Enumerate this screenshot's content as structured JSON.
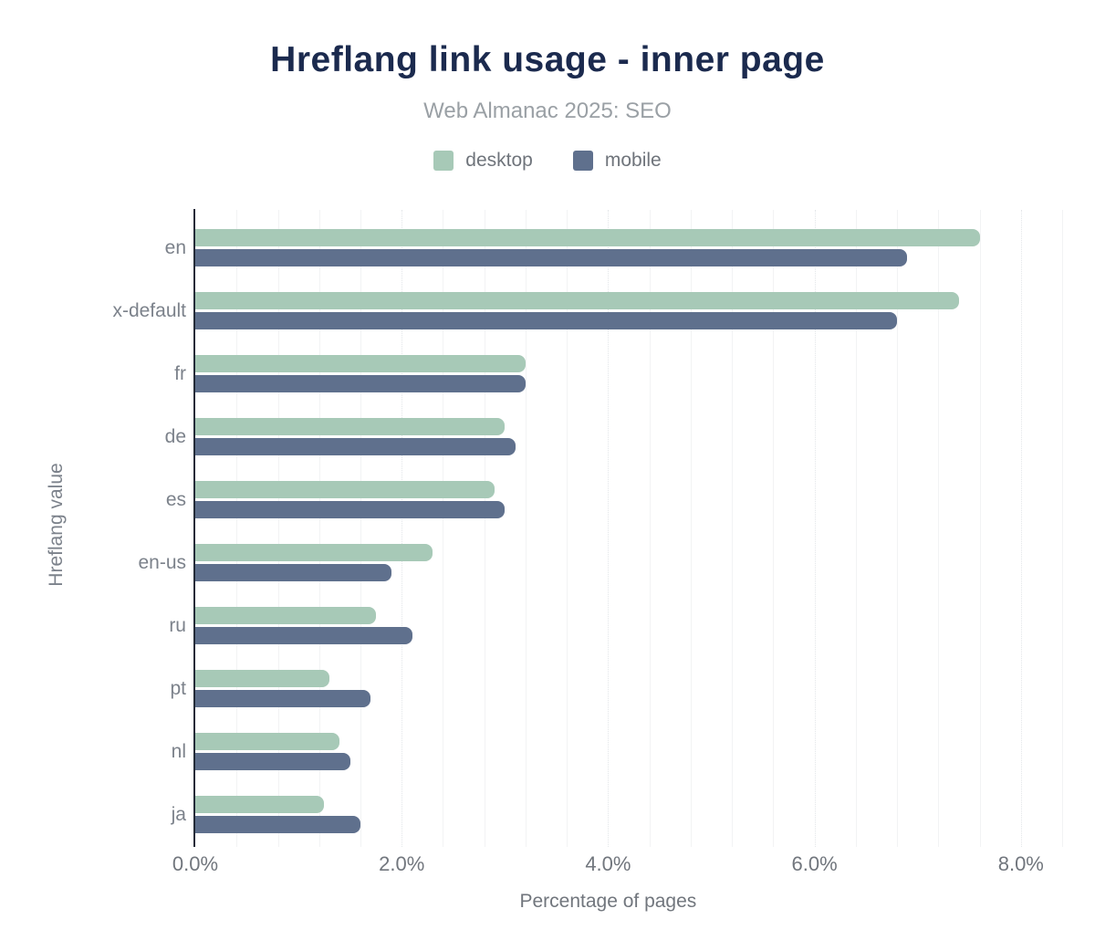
{
  "header": {
    "title": "Hreflang link usage - inner page",
    "subtitle": "Web Almanac 2025: SEO"
  },
  "legend": {
    "items": [
      {
        "label": "desktop",
        "color": "#a7c9b7"
      },
      {
        "label": "mobile",
        "color": "#5f708d"
      }
    ]
  },
  "colors": {
    "title": "#1b2a4e",
    "subtitle": "#9aa0a5",
    "axis_line": "#242b38",
    "desktop_bar": "#a7c9b7",
    "mobile_bar": "#5f708d"
  },
  "chart_data": {
    "type": "bar",
    "orientation": "horizontal",
    "title": "Hreflang link usage - inner page",
    "subtitle": "Web Almanac 2025: SEO",
    "xlabel": "Percentage of pages",
    "ylabel": "Hreflang value",
    "categories": [
      "en",
      "x-default",
      "fr",
      "de",
      "es",
      "en-us",
      "ru",
      "pt",
      "nl",
      "ja"
    ],
    "series": [
      {
        "name": "desktop",
        "color": "#a7c9b7",
        "values": [
          7.6,
          7.4,
          3.2,
          3.0,
          2.9,
          2.3,
          1.75,
          1.3,
          1.4,
          1.25
        ]
      },
      {
        "name": "mobile",
        "color": "#5f708d",
        "values": [
          6.9,
          6.8,
          3.2,
          3.1,
          3.0,
          1.9,
          2.1,
          1.7,
          1.5,
          1.6
        ]
      }
    ],
    "value_unit": "%",
    "x_ticks": [
      {
        "value": 0,
        "label": "0.0%"
      },
      {
        "value": 2,
        "label": "2.0%"
      },
      {
        "value": 4,
        "label": "4.0%"
      },
      {
        "value": 6,
        "label": "6.0%"
      },
      {
        "value": 8,
        "label": "8.0%"
      }
    ],
    "xlim": [
      0,
      8.4
    ],
    "grid": true,
    "grid_minor_step": 0.4,
    "legend_position": "top"
  }
}
